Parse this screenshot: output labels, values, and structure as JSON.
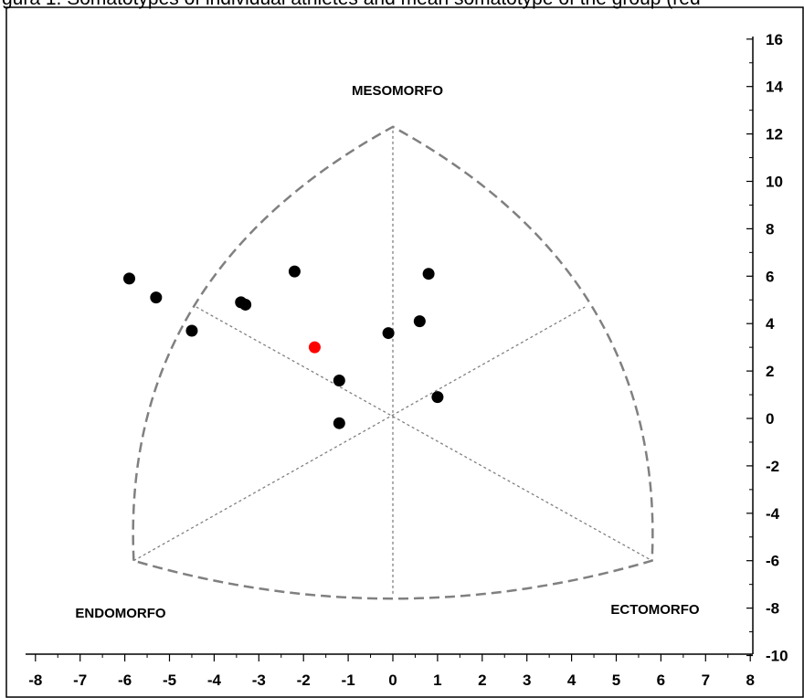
{
  "caption": "gura 1. Somatotypes of individual athletes and mean somatotype of the group (red",
  "chart_data": {
    "type": "scatter",
    "title": "",
    "xlabel": "",
    "ylabel": "",
    "xlim": [
      -8,
      8
    ],
    "ylim": [
      -10,
      16
    ],
    "x_ticks": [
      "-8",
      "-7",
      "-6",
      "-5",
      "-4",
      "-3",
      "-2",
      "-1",
      "0",
      "1",
      "2",
      "3",
      "4",
      "5",
      "6",
      "7",
      "8"
    ],
    "y_ticks": [
      "16",
      "14",
      "12",
      "10",
      "8",
      "6",
      "4",
      "2",
      "0",
      "-2",
      "-4",
      "-6",
      "-8",
      "-10"
    ],
    "region_labels": {
      "top": "MESOMORFO",
      "left": "ENDOMORFO",
      "right": "ECTOMORFO"
    },
    "colors": {
      "individual": "#000000",
      "mean": "#ff0000",
      "frame": "#808080",
      "axes": "#000000"
    },
    "series": [
      {
        "role": "individual",
        "points": [
          [
            -5.9,
            5.9
          ],
          [
            -5.3,
            5.1
          ],
          [
            -4.5,
            3.7
          ],
          [
            -3.4,
            4.9
          ],
          [
            -3.3,
            4.8
          ],
          [
            -2.2,
            6.2
          ],
          [
            -1.2,
            1.6
          ],
          [
            -1.2,
            -0.2
          ],
          [
            -0.1,
            3.6
          ],
          [
            0.6,
            4.1
          ],
          [
            0.8,
            6.1
          ],
          [
            1.0,
            0.9
          ]
        ]
      },
      {
        "role": "mean",
        "points": [
          [
            -1.75,
            3.0
          ]
        ]
      }
    ]
  }
}
